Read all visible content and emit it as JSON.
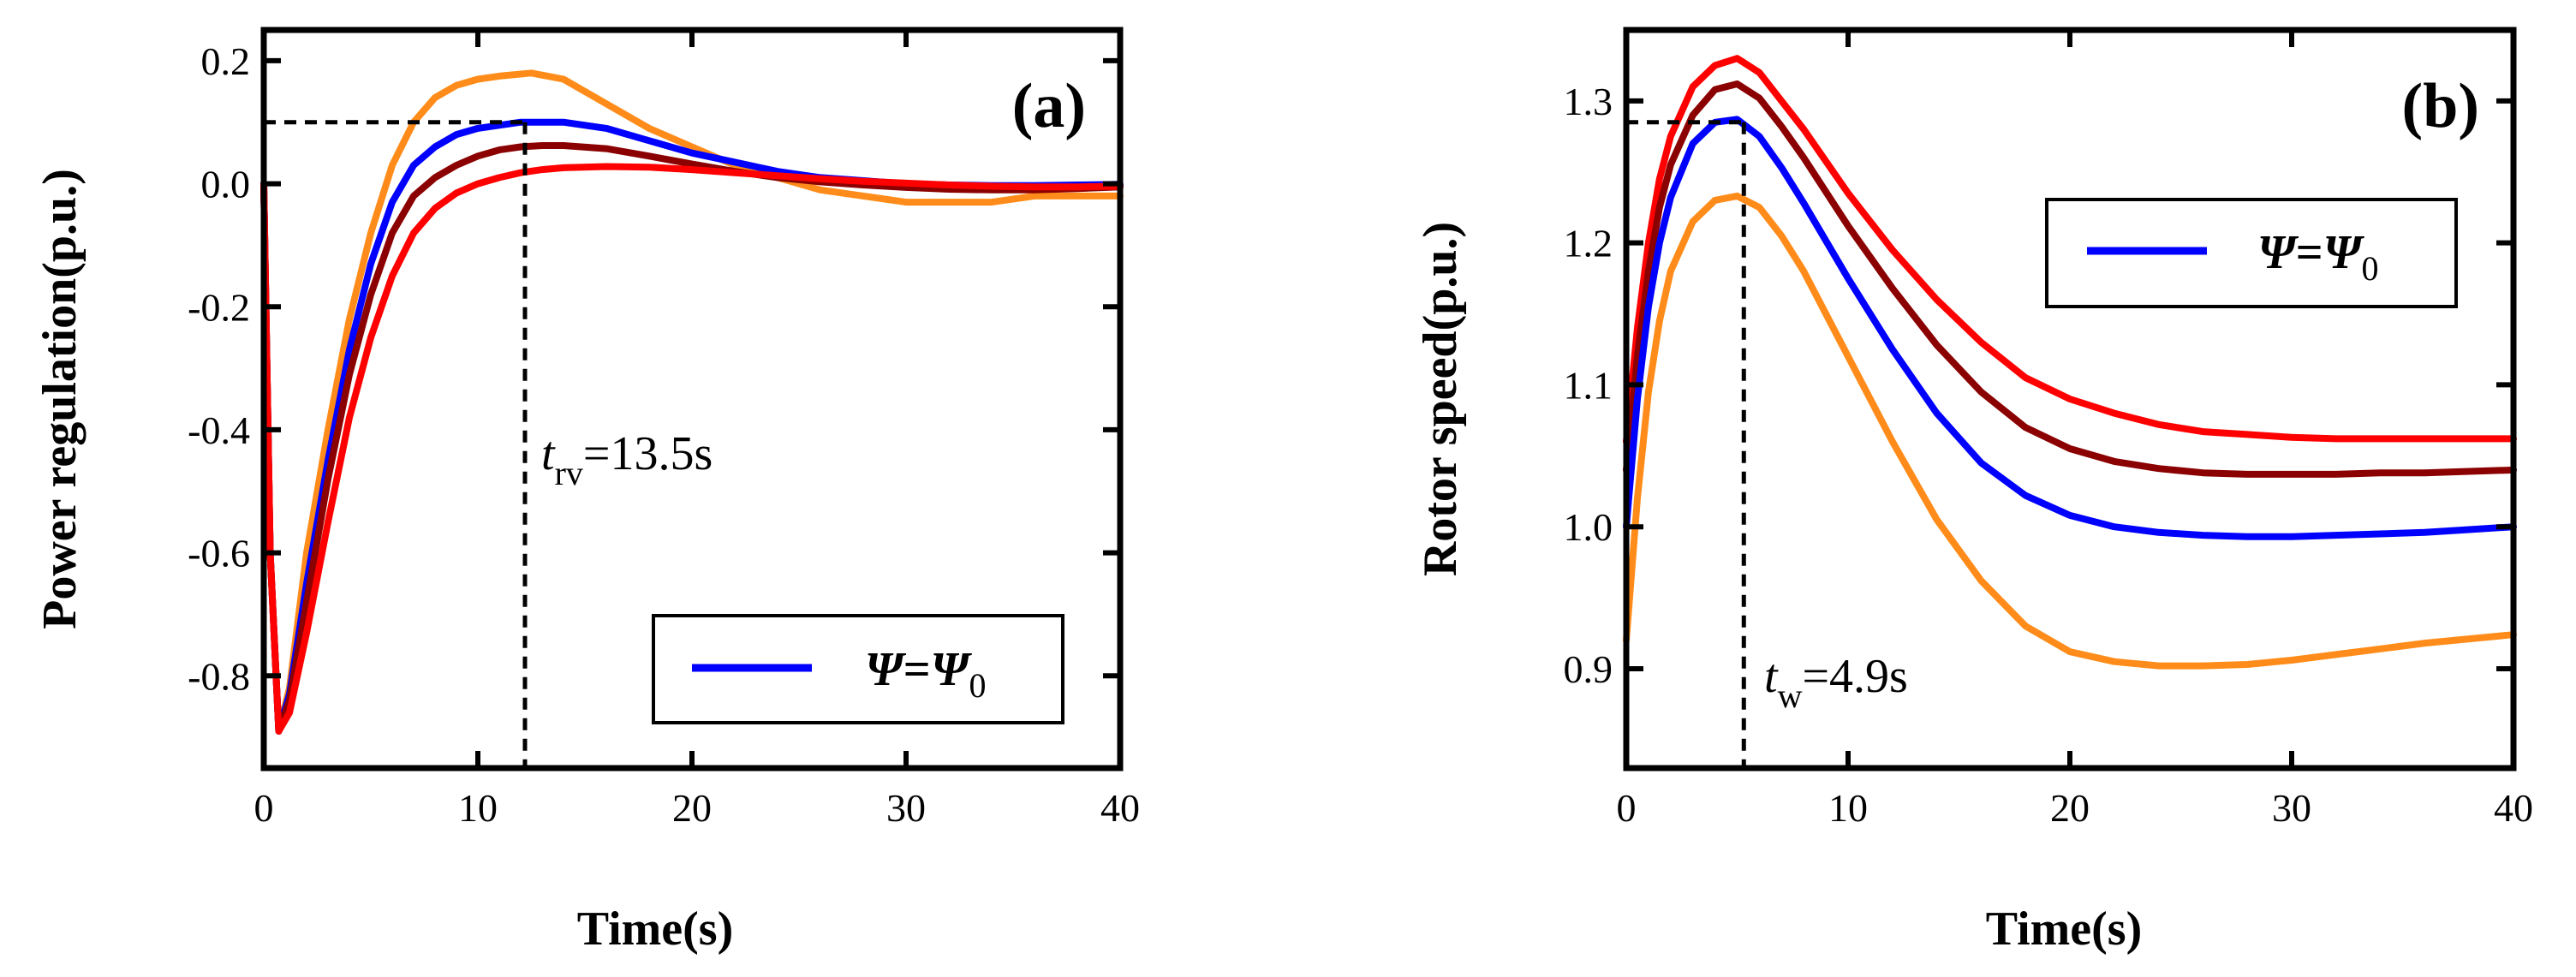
{
  "chart_data": [
    {
      "panel": "(a)",
      "type": "line",
      "xlabel": "Time(s)",
      "ylabel": "Power regulation(p.u.)",
      "xlim": [
        0,
        40
      ],
      "ylim": [
        -0.95,
        0.25
      ],
      "xticks": [
        "0",
        "10",
        "20",
        "30",
        "40"
      ],
      "yticks": [
        "0.2",
        "0.0",
        "-0.2",
        "-0.4",
        "-0.6",
        "-0.8"
      ],
      "ytick_values": [
        0.2,
        0.0,
        -0.2,
        -0.4,
        -0.6,
        -0.8
      ],
      "annotation": {
        "var": "t",
        "sub": "rv",
        "text": "=13.5s",
        "x": 12.2,
        "y": 0.1
      },
      "legend": {
        "position": "bottom-right",
        "symbol_left": "Ψ",
        "eq": "=",
        "symbol_right": "Ψ",
        "sub": "0",
        "color": "#0000ff"
      },
      "series": [
        {
          "color": "#ff8c1a",
          "x": [
            0,
            0.3,
            0.7,
            1.2,
            2,
            3,
            4,
            5,
            6,
            7,
            8,
            9,
            10,
            11,
            12.5,
            14,
            16,
            18,
            20,
            22,
            24,
            26,
            28,
            30,
            32,
            34,
            36,
            38,
            40
          ],
          "y": [
            0,
            -0.6,
            -0.89,
            -0.82,
            -0.6,
            -0.4,
            -0.22,
            -0.08,
            0.03,
            0.1,
            0.14,
            0.16,
            0.17,
            0.175,
            0.18,
            0.17,
            0.13,
            0.09,
            0.06,
            0.03,
            0.01,
            -0.01,
            -0.02,
            -0.03,
            -0.03,
            -0.03,
            -0.02,
            -0.02,
            -0.02
          ]
        },
        {
          "color": "#0000ff",
          "x": [
            0,
            0.3,
            0.7,
            1.2,
            2,
            3,
            4,
            5,
            6,
            7,
            8,
            9,
            10,
            11,
            12,
            13,
            14,
            16,
            18,
            20,
            22,
            24,
            26,
            28,
            30,
            32,
            34,
            36,
            38,
            40
          ],
          "y": [
            0,
            -0.6,
            -0.89,
            -0.83,
            -0.65,
            -0.45,
            -0.27,
            -0.13,
            -0.03,
            0.03,
            0.06,
            0.08,
            0.09,
            0.095,
            0.1,
            0.1,
            0.1,
            0.09,
            0.07,
            0.05,
            0.035,
            0.02,
            0.01,
            0.005,
            0.0,
            -0.002,
            -0.003,
            -0.003,
            -0.002,
            -0.001
          ]
        },
        {
          "color": "#8b0000",
          "x": [
            0,
            0.3,
            0.7,
            1.2,
            2,
            3,
            4,
            5,
            6,
            7,
            8,
            9,
            10,
            11,
            12,
            13,
            14,
            16,
            18,
            20,
            22,
            24,
            26,
            28,
            30,
            32,
            34,
            36,
            38,
            40
          ],
          "y": [
            0,
            -0.6,
            -0.89,
            -0.84,
            -0.68,
            -0.48,
            -0.31,
            -0.18,
            -0.08,
            -0.02,
            0.01,
            0.03,
            0.045,
            0.055,
            0.06,
            0.062,
            0.062,
            0.057,
            0.045,
            0.032,
            0.02,
            0.01,
            0.003,
            -0.002,
            -0.006,
            -0.009,
            -0.01,
            -0.01,
            -0.008,
            -0.005
          ]
        },
        {
          "color": "#ff0000",
          "x": [
            0,
            0.3,
            0.7,
            1.2,
            2,
            3,
            4,
            5,
            6,
            7,
            8,
            9,
            10,
            11,
            12,
            13,
            14,
            16,
            18,
            20,
            22,
            24,
            26,
            28,
            30,
            32,
            34,
            36,
            38,
            40
          ],
          "y": [
            0,
            -0.6,
            -0.89,
            -0.86,
            -0.73,
            -0.55,
            -0.38,
            -0.25,
            -0.15,
            -0.08,
            -0.04,
            -0.015,
            0.0,
            0.01,
            0.018,
            0.023,
            0.026,
            0.028,
            0.027,
            0.023,
            0.018,
            0.013,
            0.008,
            0.004,
            0.001,
            -0.002,
            -0.004,
            -0.005,
            -0.005,
            -0.004
          ]
        }
      ]
    },
    {
      "panel": "(b)",
      "type": "line",
      "xlabel": "Time(s)",
      "ylabel": "Rotor speed(p.u.)",
      "xlim": [
        0,
        40
      ],
      "ylim": [
        0.83,
        1.35
      ],
      "xticks": [
        "0",
        "10",
        "20",
        "30",
        "40"
      ],
      "yticks": [
        "1.3",
        "1.2",
        "1.1",
        "1.0",
        "0.9"
      ],
      "ytick_values": [
        1.3,
        1.2,
        1.1,
        1.0,
        0.9
      ],
      "annotation": {
        "var": "t",
        "sub": "w",
        "text": "=4.9s",
        "x": 5.3,
        "y": 1.285
      },
      "legend": {
        "position": "top-right",
        "symbol_left": "Ψ",
        "eq": "=",
        "symbol_right": "Ψ",
        "sub": "0",
        "color": "#0000ff"
      },
      "series": [
        {
          "color": "#ff0000",
          "x": [
            0,
            0.5,
            1,
            1.5,
            2,
            3,
            4,
            5,
            6,
            7,
            8,
            10,
            12,
            14,
            16,
            18,
            20,
            22,
            24,
            26,
            28,
            30,
            32,
            34,
            36,
            38,
            40
          ],
          "y": [
            1.06,
            1.14,
            1.2,
            1.245,
            1.275,
            1.31,
            1.325,
            1.33,
            1.32,
            1.3,
            1.28,
            1.235,
            1.195,
            1.16,
            1.13,
            1.105,
            1.09,
            1.08,
            1.072,
            1.067,
            1.065,
            1.063,
            1.062,
            1.062,
            1.062,
            1.062,
            1.062
          ]
        },
        {
          "color": "#8b0000",
          "x": [
            0,
            0.5,
            1,
            1.5,
            2,
            3,
            4,
            5,
            6,
            7,
            8,
            10,
            12,
            14,
            16,
            18,
            20,
            22,
            24,
            26,
            28,
            30,
            32,
            34,
            36,
            38,
            40
          ],
          "y": [
            1.04,
            1.12,
            1.18,
            1.225,
            1.255,
            1.29,
            1.308,
            1.312,
            1.302,
            1.282,
            1.26,
            1.212,
            1.168,
            1.128,
            1.095,
            1.07,
            1.055,
            1.046,
            1.041,
            1.038,
            1.037,
            1.037,
            1.037,
            1.038,
            1.038,
            1.039,
            1.04
          ]
        },
        {
          "color": "#0000ff",
          "x": [
            0,
            0.5,
            1,
            1.5,
            2,
            3,
            4,
            5,
            6,
            7,
            8,
            10,
            12,
            14,
            16,
            18,
            20,
            22,
            24,
            26,
            28,
            30,
            32,
            34,
            36,
            38,
            40
          ],
          "y": [
            1.0,
            1.09,
            1.155,
            1.2,
            1.232,
            1.27,
            1.285,
            1.287,
            1.275,
            1.253,
            1.228,
            1.175,
            1.125,
            1.08,
            1.045,
            1.022,
            1.008,
            1.0,
            0.996,
            0.994,
            0.993,
            0.993,
            0.994,
            0.995,
            0.996,
            0.998,
            1.0
          ]
        },
        {
          "color": "#ff8c1a",
          "x": [
            0,
            0.5,
            1,
            1.5,
            2,
            3,
            4,
            5,
            6,
            7,
            8,
            10,
            12,
            14,
            16,
            18,
            20,
            22,
            24,
            26,
            28,
            30,
            32,
            34,
            36,
            38,
            40
          ],
          "y": [
            0.92,
            1.02,
            1.095,
            1.145,
            1.18,
            1.215,
            1.23,
            1.233,
            1.225,
            1.205,
            1.18,
            1.12,
            1.06,
            1.005,
            0.962,
            0.93,
            0.912,
            0.905,
            0.902,
            0.902,
            0.903,
            0.906,
            0.91,
            0.914,
            0.918,
            0.921,
            0.924
          ]
        }
      ]
    }
  ]
}
